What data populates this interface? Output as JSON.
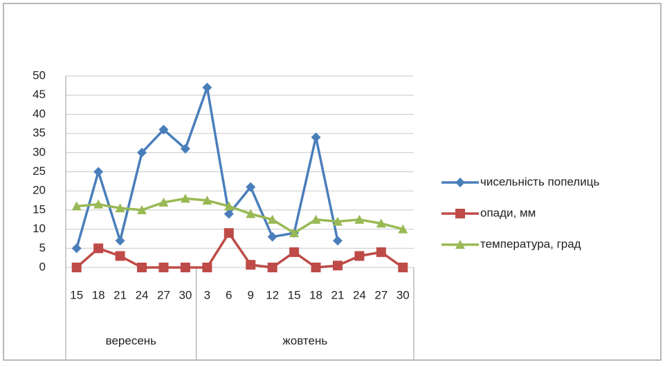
{
  "chart_data": {
    "type": "line",
    "categories": [
      "15",
      "18",
      "21",
      "24",
      "27",
      "30",
      "3",
      "6",
      "9",
      "12",
      "15",
      "18",
      "21",
      "24",
      "27",
      "30"
    ],
    "category_groups": [
      {
        "label": "вересень",
        "count": 6
      },
      {
        "label": "жовтень",
        "count": 10
      }
    ],
    "series": [
      {
        "name": "чисельність попелиць",
        "color": "#4a7ebb",
        "marker": "diamond",
        "values": [
          5,
          25,
          7,
          30,
          36,
          31,
          47,
          14,
          21,
          8,
          9,
          34,
          7,
          null,
          null,
          null
        ]
      },
      {
        "name": "опади, мм",
        "color": "#be4b48",
        "marker": "square",
        "values": [
          0,
          5,
          3,
          0,
          0,
          0,
          0,
          9,
          0.7,
          0,
          4,
          0,
          0.5,
          3,
          4,
          0
        ]
      },
      {
        "name": "температура, град",
        "color": "#98b954",
        "marker": "triangle",
        "values": [
          16,
          16.5,
          15.5,
          15,
          17,
          18,
          17.5,
          16,
          14,
          12.5,
          9,
          12.5,
          12,
          12.5,
          11.5,
          10
        ]
      }
    ],
    "ylim": [
      0,
      50
    ],
    "yticks": [
      0,
      5,
      10,
      15,
      20,
      25,
      30,
      35,
      40,
      45,
      50
    ],
    "grid": true,
    "legend": "right"
  }
}
